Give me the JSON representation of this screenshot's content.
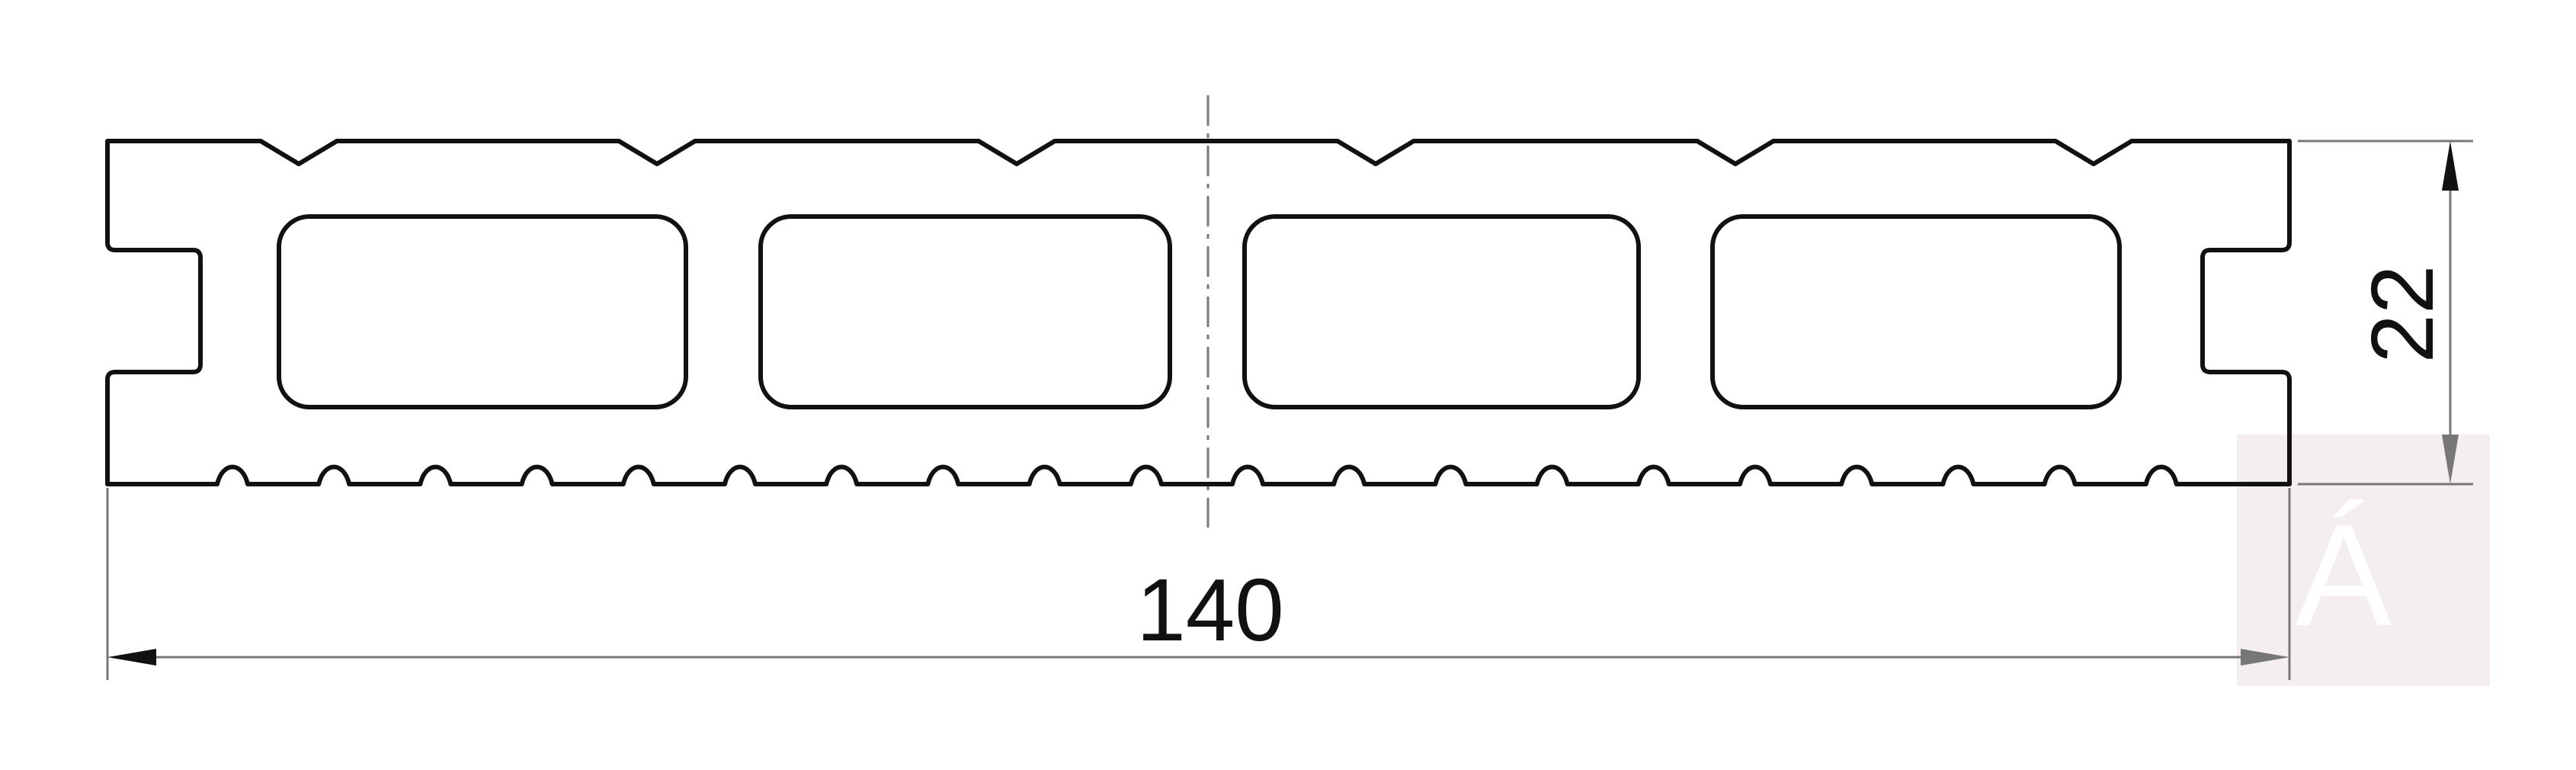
{
  "drawing": {
    "width_dimension": "140",
    "height_dimension": "22",
    "watermark_glyph": "Á"
  },
  "colors": {
    "profile_stroke": "#111111",
    "dimension_line": "#777777",
    "center_line": "#777777",
    "watermark_background": "#f4eeee"
  }
}
